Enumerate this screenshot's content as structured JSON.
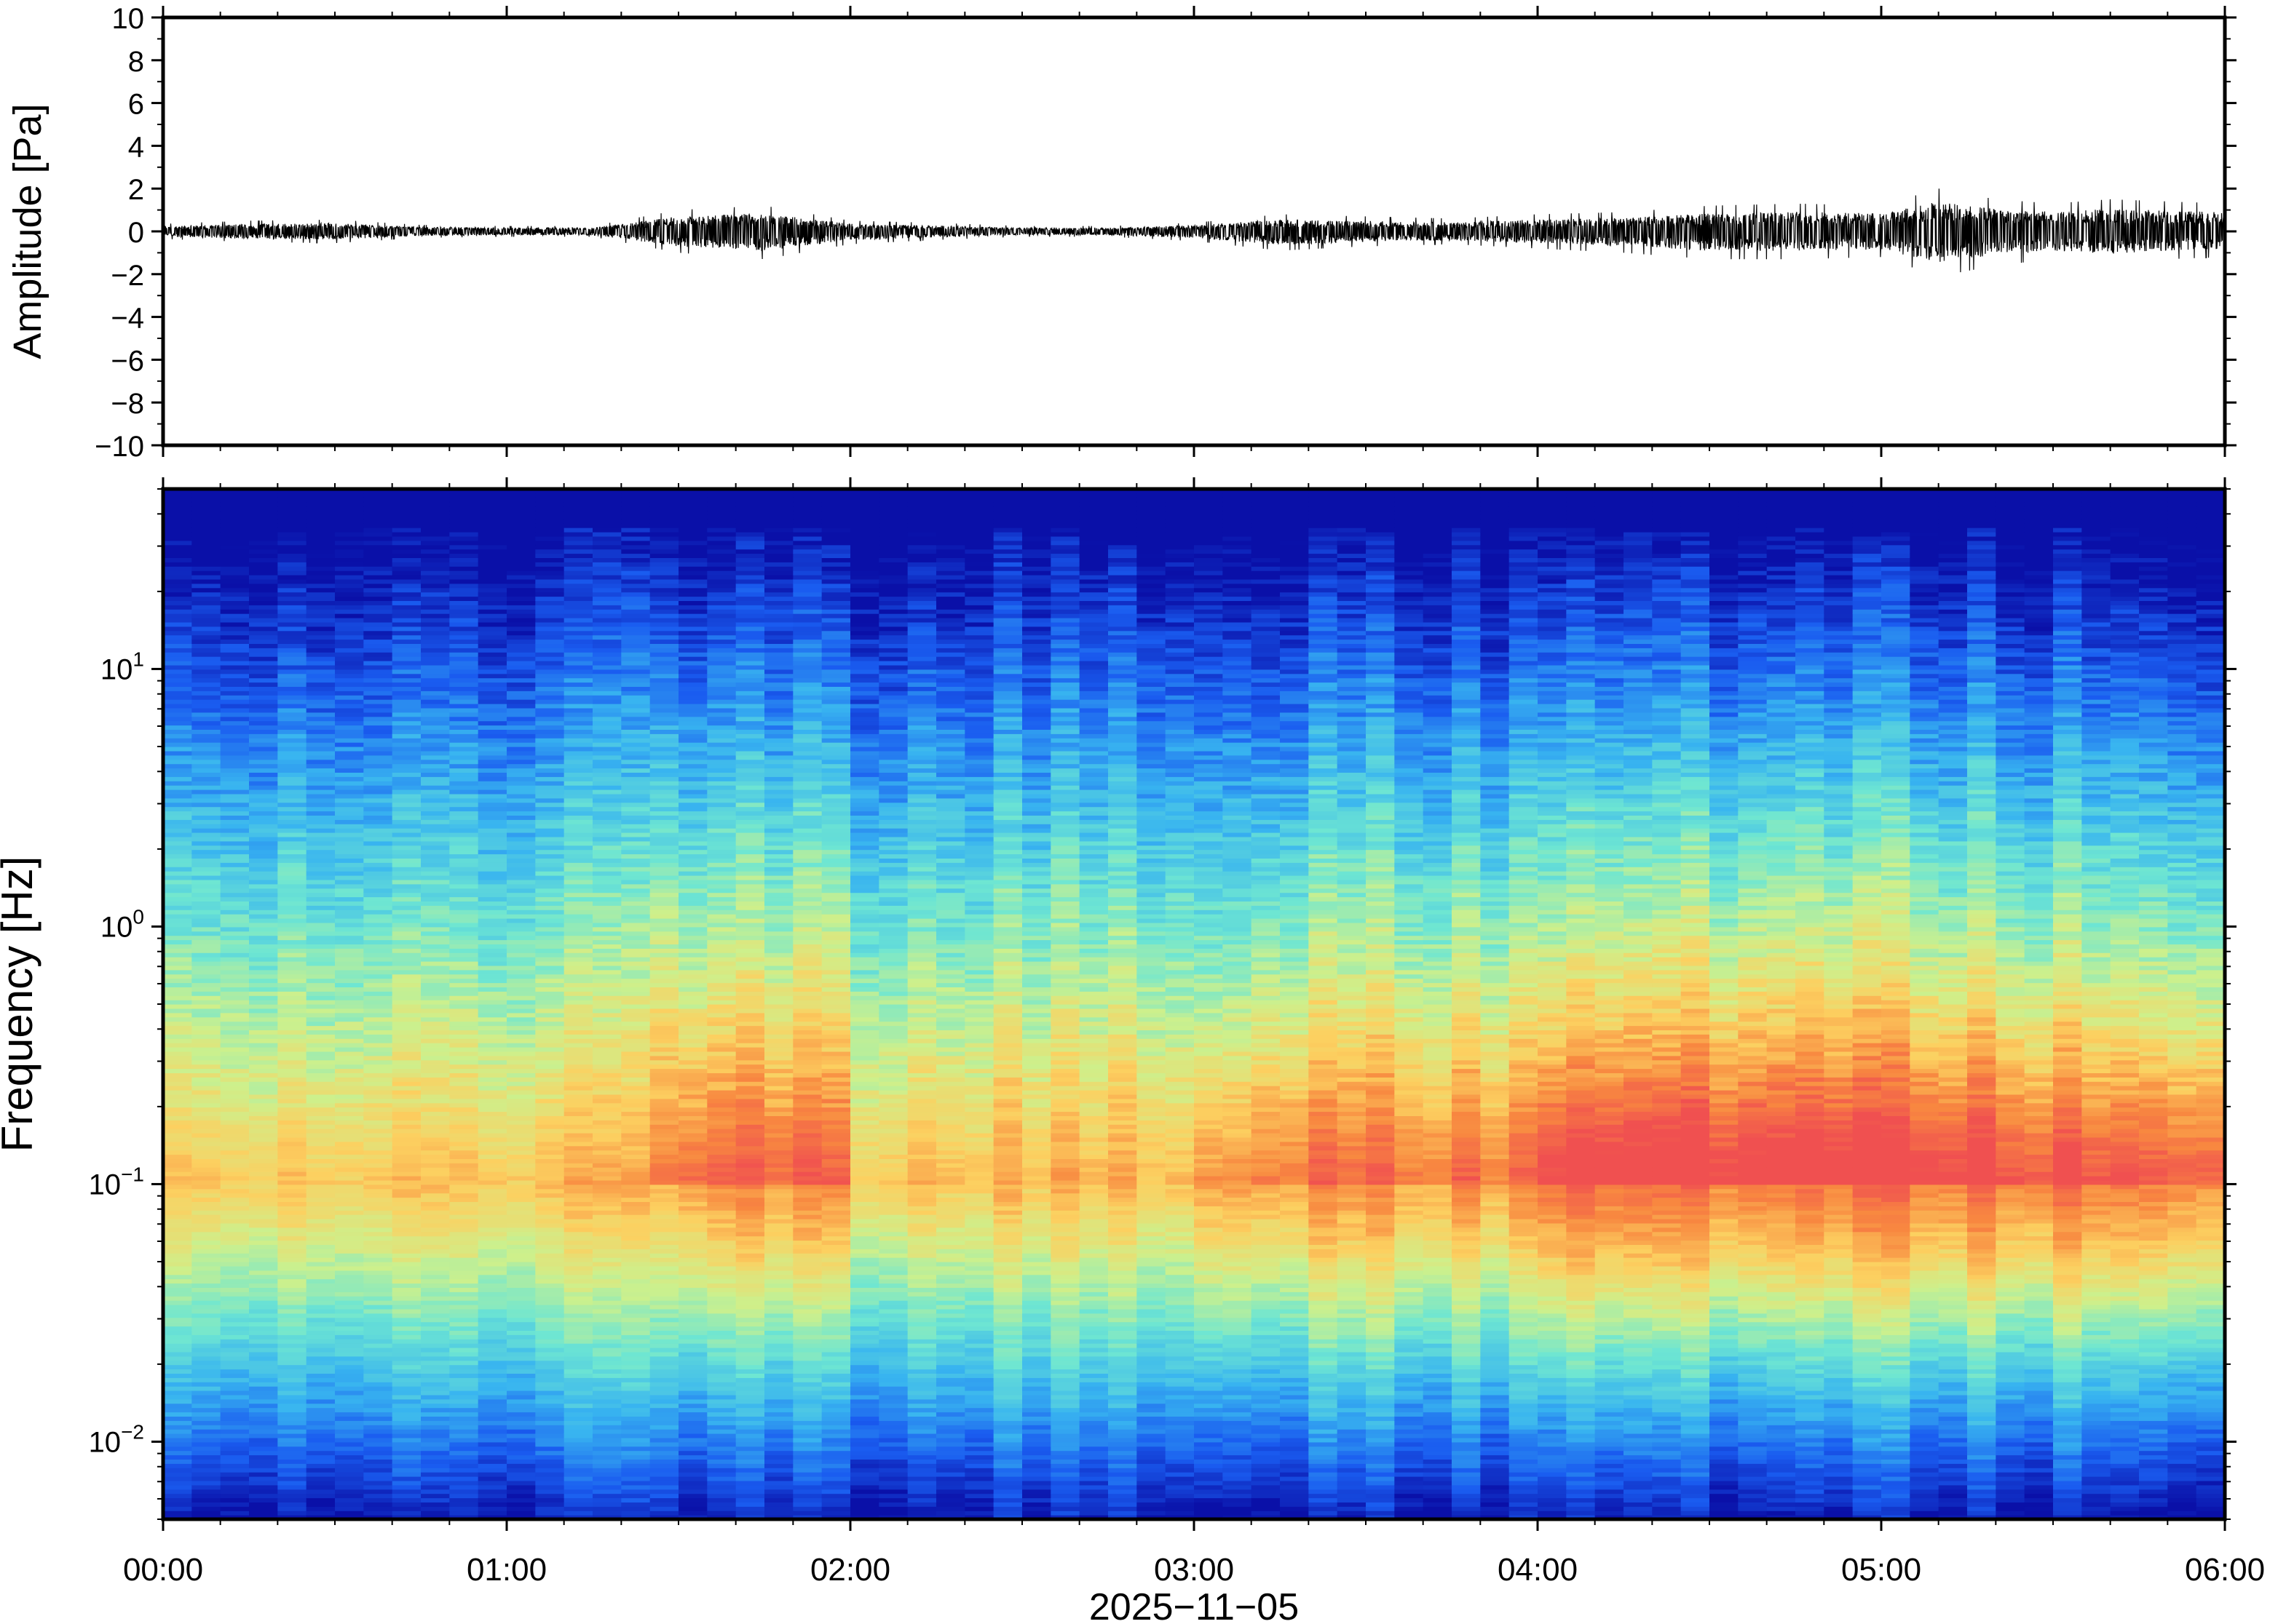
{
  "figure": {
    "date_label": "2025−11−05"
  },
  "chart_data": [
    {
      "type": "line",
      "panel": "waveform",
      "ylabel": "Amplitude [Pa]",
      "xlabel": "",
      "xlim": [
        "00:00",
        "06:00"
      ],
      "ylim": [
        -10,
        10
      ],
      "yticks": [
        -10,
        -8,
        -6,
        -4,
        -2,
        0,
        2,
        4,
        6,
        8,
        10
      ],
      "ytick_labels": [
        "−10",
        "−8",
        "−6",
        "−4",
        "−2",
        "0",
        "2",
        "4",
        "6",
        "8",
        "10"
      ],
      "grid": false,
      "series": [
        {
          "x_unit": "time of day",
          "x": [
            "00:00",
            "00:15",
            "00:30",
            "00:45",
            "01:00",
            "01:15",
            "01:30",
            "01:45",
            "02:00",
            "02:15",
            "02:30",
            "02:45",
            "03:00",
            "03:15",
            "03:30",
            "03:45",
            "04:00",
            "04:15",
            "04:30",
            "04:45",
            "05:00",
            "05:10",
            "05:20",
            "05:30",
            "05:40",
            "05:50",
            "06:00"
          ],
          "envelope_max": [
            0.35,
            0.5,
            0.55,
            0.3,
            0.25,
            0.25,
            1.0,
            1.2,
            0.5,
            0.4,
            0.25,
            0.25,
            0.4,
            0.8,
            0.7,
            0.6,
            0.8,
            0.9,
            1.2,
            1.3,
            1.2,
            2.0,
            1.5,
            1.3,
            1.5,
            1.4,
            1.3
          ],
          "envelope_min": [
            -0.35,
            -0.5,
            -0.55,
            -0.3,
            -0.25,
            -0.25,
            -1.0,
            -1.3,
            -0.6,
            -0.4,
            -0.25,
            -0.25,
            -0.45,
            -0.9,
            -0.7,
            -0.6,
            -0.8,
            -1.0,
            -1.3,
            -1.3,
            -1.2,
            -2.1,
            -1.6,
            -1.3,
            -1.5,
            -1.3,
            -1.2
          ],
          "color": "#000000"
        }
      ]
    },
    {
      "type": "heatmap",
      "panel": "spectrogram",
      "ylabel": "Frequency [Hz]",
      "xlabel": "2025−11−05",
      "x_ticks": [
        "00:00",
        "01:00",
        "02:00",
        "03:00",
        "04:00",
        "05:00",
        "06:00"
      ],
      "xlim": [
        "00:00",
        "06:00"
      ],
      "y_scale": "log",
      "ylim": [
        0.005,
        50
      ],
      "yticks": [
        0.01,
        0.1,
        1,
        10
      ],
      "ytick_labels": [
        {
          "base": "10",
          "exp": "−2"
        },
        {
          "base": "10",
          "exp": "−1"
        },
        {
          "base": "10",
          "exp": "0"
        },
        {
          "base": "10",
          "exp": "1"
        }
      ],
      "colormap": [
        "#0a10a8",
        "#1a5cf0",
        "#38b4f0",
        "#6ee6d2",
        "#cdf08c",
        "#fcd060",
        "#f88840",
        "#f05050"
      ],
      "time_bins": 72,
      "relative_energy_by_hour": [
        {
          "hour": "00:00-01:00",
          "level": "low"
        },
        {
          "hour": "01:00-01:30",
          "level": "low"
        },
        {
          "hour": "01:30-02:00",
          "level": "moderate"
        },
        {
          "hour": "02:00-03:00",
          "level": "low"
        },
        {
          "hour": "03:00-04:00",
          "level": "moderate"
        },
        {
          "hour": "04:00-05:00",
          "level": "high"
        },
        {
          "hour": "05:00-06:00",
          "level": "high"
        }
      ]
    }
  ]
}
